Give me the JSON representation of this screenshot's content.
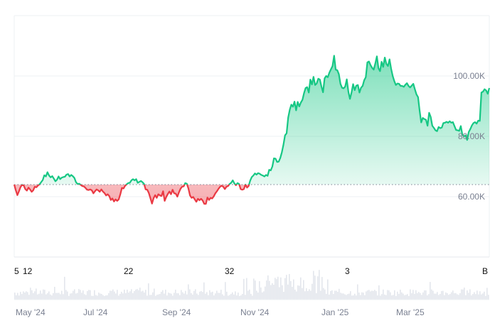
{
  "chart_data": {
    "type": "area",
    "baseline": 64000,
    "y_ticks": [
      {
        "value": 100000,
        "label": "100.00K"
      },
      {
        "value": 80000,
        "label": "80.00K"
      },
      {
        "value": 60000,
        "label": "60.00K"
      }
    ],
    "x_ticks": [
      "May '24",
      "Jul '24",
      "Sep '24",
      "Nov '24",
      "Jan '25",
      "Mar '25"
    ],
    "annotations": [
      "5",
      "12",
      "22",
      "32",
      "3",
      "B"
    ],
    "colors": {
      "up": "#16c784",
      "down": "#ea3943",
      "grid": "#eef0f3",
      "baseline": "#7a8091"
    },
    "ylim": [
      40000,
      120000
    ],
    "series": [
      {
        "values": [
          64000,
          62100,
          60500,
          61800,
          63200,
          63900,
          63700,
          62500,
          62000,
          63000,
          62400,
          61600,
          62100,
          63300,
          63100,
          63700,
          64100,
          64800,
          65500,
          67100,
          66700,
          68100,
          67000,
          66400,
          66800,
          66000,
          65100,
          65600,
          66700,
          65800,
          66300,
          66500,
          66600,
          67300,
          67500,
          66700,
          67200,
          66800,
          66200,
          64800,
          64200,
          64300,
          63900,
          63500,
          63400,
          62900,
          62300,
          62200,
          62400,
          62100,
          61100,
          61800,
          62400,
          62100,
          61600,
          62400,
          61700,
          61200,
          60400,
          60800,
          60200,
          58900,
          59400,
          58400,
          59100,
          58600,
          59100,
          60800,
          62900,
          62700,
          63600,
          64100,
          64500,
          64600,
          65400,
          65800,
          65400,
          65800,
          64600,
          64900,
          65200,
          64800,
          64200,
          62400,
          62300,
          61200,
          59500,
          57700,
          59500,
          60500,
          59600,
          60800,
          60400,
          60200,
          61800,
          58600,
          59900,
          60900,
          61700,
          60800,
          62300,
          61100,
          61000,
          60000,
          61400,
          62600,
          63300,
          63400,
          64500,
          64300,
          62700,
          60400,
          59600,
          59900,
          59100,
          58300,
          59300,
          58800,
          59300,
          58700,
          57600,
          57600,
          59700,
          58900,
          59600,
          59400,
          60100,
          61100,
          61800,
          62600,
          63300,
          63600,
          63300,
          62500,
          63300,
          63500,
          64200,
          64600,
          65400,
          64400,
          63800,
          64500,
          64200,
          62500,
          62300,
          62500,
          64000,
          63000,
          63500,
          65300,
          66500,
          67000,
          67700,
          67300,
          67800,
          67600,
          67200,
          67000,
          66700,
          67200,
          66900,
          68900,
          68700,
          70000,
          72700,
          72600,
          71500,
          71600,
          72800,
          74700,
          77200,
          80300,
          81000,
          86200,
          88800,
          90500,
          89800,
          91500,
          88600,
          91400,
          89900,
          91200,
          92100,
          94300,
          96000,
          96300,
          94500,
          98800,
          97200,
          99700,
          97000,
          97500,
          99100,
          98800,
          96500,
          94600,
          99200,
          100000,
          99600,
          101100,
          102200,
          103300,
          106700,
          102100,
          101900,
          100600,
          97400,
          96100,
          95900,
          96500,
          98900,
          94800,
          92400,
          94500,
          97300,
          95300,
          96800,
          97000,
          94500,
          96100,
          96700,
          98600,
          99600,
          104500,
          104800,
          103600,
          102700,
          102100,
          104100,
          106500,
          102600,
          101600,
          104700,
          103000,
          106100,
          104000,
          103300,
          105500,
          102400,
          100000,
          98300,
          97000,
          97500,
          97400,
          96700,
          96700,
          96400,
          97100,
          97600,
          96700,
          96200,
          96800,
          97400,
          95600,
          93900,
          93000,
          88500,
          84600,
          86100,
          85700,
          85500,
          83500,
          87800,
          86400,
          83500,
          82800,
          82000,
          81700,
          83100,
          82700,
          82900,
          84400,
          84500,
          84800,
          84500,
          85000,
          84500,
          84700,
          83400,
          82100,
          82000,
          81800,
          83400,
          80500,
          80000,
          80300,
          78800,
          81400,
          82400,
          83600,
          84400,
          84700,
          84200,
          85200,
          85100,
          94500,
          94800,
          95600,
          95200,
          94100,
          96000
        ]
      }
    ]
  }
}
